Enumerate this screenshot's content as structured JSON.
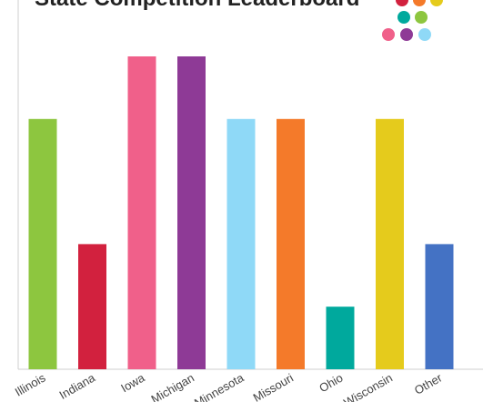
{
  "chart_data": {
    "type": "bar",
    "title": "State Competition Leaderboard",
    "categories": [
      "Illinois",
      "Indiana",
      "Iowa",
      "Michigan",
      "Minnesota",
      "Missouri",
      "Ohio",
      "Wisconsin",
      "Other"
    ],
    "values": [
      4,
      2,
      5,
      5,
      4,
      4,
      1,
      4,
      2
    ],
    "colors": [
      "#8dc63f",
      "#d2213e",
      "#f0608a",
      "#8e3a96",
      "#8fd9f7",
      "#f47a2a",
      "#00a99d",
      "#e5cb1c",
      "#4472c4"
    ],
    "ylim": [
      0,
      5
    ],
    "grid": false,
    "legend": "none",
    "xlabel": "",
    "ylabel": ""
  },
  "logo": {
    "name": "dot-grid-logo",
    "dot_colors": [
      "#d2213e",
      "#f47a2a",
      "#e5cb1c",
      "#00a99d",
      "#8dc63f",
      "#f0608a",
      "#8e3a96",
      "#8fd9f7"
    ]
  }
}
